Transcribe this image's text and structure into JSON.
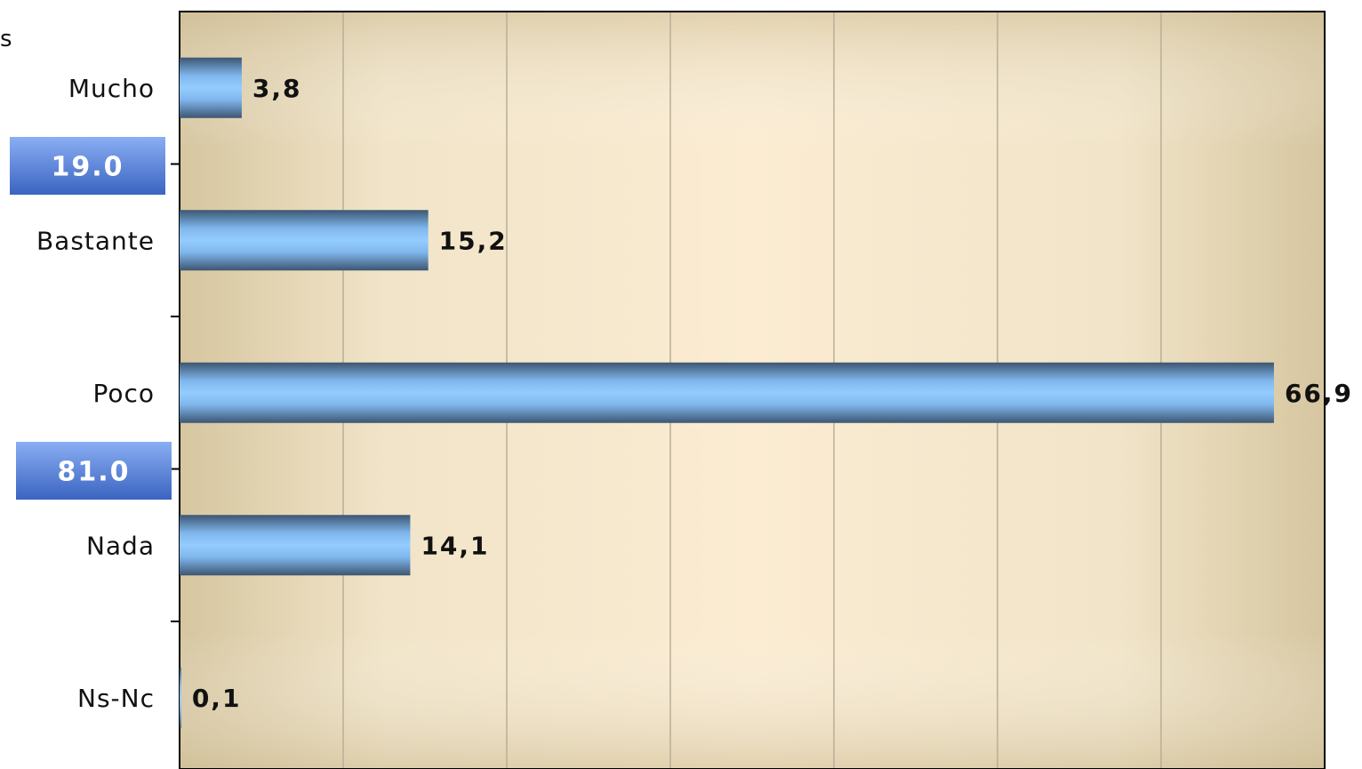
{
  "chart_data": {
    "type": "bar",
    "orientation": "horizontal",
    "categories": [
      "Mucho",
      "Bastante",
      "Poco",
      "Nada",
      "Ns-Nc"
    ],
    "values": [
      3.8,
      15.2,
      66.9,
      14.1,
      0.1
    ],
    "value_labels": [
      "3,8",
      "15,2",
      "66,9",
      "14,1",
      "0,1"
    ],
    "xlim": [
      0,
      70
    ],
    "grid": true,
    "group_totals": [
      {
        "label": "19.0",
        "covers": [
          "Mucho",
          "Bastante"
        ]
      },
      {
        "label": "81.0",
        "covers": [
          "Poco",
          "Nada"
        ]
      }
    ],
    "cut_text": "s",
    "colors": {
      "bar_light": "#90c8ff",
      "bar_dark": "#3d5672",
      "box_light": "#7ea2f0",
      "box_dark": "#3a66c4",
      "plot_center": "#fbecd3",
      "plot_edge": "#d8c8a4"
    }
  }
}
